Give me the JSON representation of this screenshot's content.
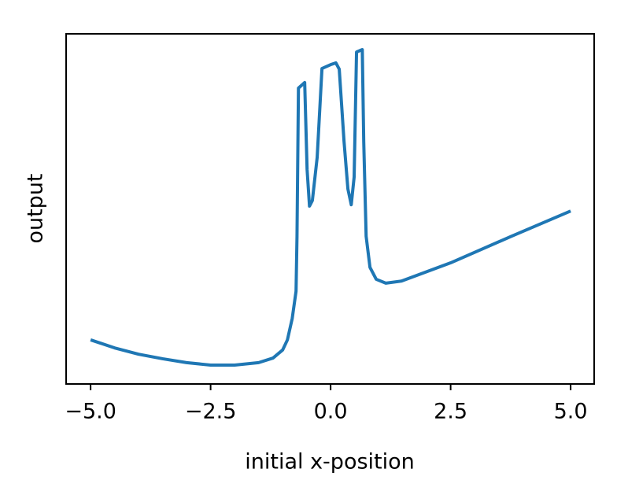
{
  "chart_data": {
    "type": "line",
    "xlabel": "initial x-position",
    "ylabel": "output",
    "color": "#1f77b4",
    "x": [
      -5,
      -4.5,
      -4,
      -3.5,
      -3,
      -2.5,
      -2,
      -1.5,
      -1.2,
      -1,
      -0.9,
      -0.8,
      -0.72,
      -0.7,
      -0.67,
      -0.54,
      -0.49,
      -0.44,
      -0.38,
      -0.28,
      -0.18,
      0,
      0.11,
      0.18,
      0.28,
      0.36,
      0.43,
      0.49,
      0.54,
      0.66,
      0.69,
      0.74,
      0.82,
      0.95,
      1.15,
      1.48,
      2.5,
      3.77,
      5
    ],
    "values": [
      0.126,
      0.103,
      0.085,
      0.072,
      0.061,
      0.054,
      0.054,
      0.061,
      0.074,
      0.097,
      0.126,
      0.187,
      0.265,
      0.422,
      0.845,
      0.861,
      0.613,
      0.508,
      0.524,
      0.647,
      0.901,
      0.912,
      0.917,
      0.899,
      0.692,
      0.557,
      0.512,
      0.591,
      0.948,
      0.955,
      0.692,
      0.422,
      0.333,
      0.299,
      0.288,
      0.294,
      0.346,
      0.422,
      0.494
    ],
    "xlim": [
      -5.51,
      5.49
    ],
    "ylim": [
      0,
      1
    ],
    "xticks": [
      {
        "value": -5,
        "label": "−5.0"
      },
      {
        "value": -2.5,
        "label": "−2.5"
      },
      {
        "value": 0,
        "label": "0.0"
      },
      {
        "value": 2.5,
        "label": "2.5"
      },
      {
        "value": 5,
        "label": "5.0"
      }
    ]
  }
}
